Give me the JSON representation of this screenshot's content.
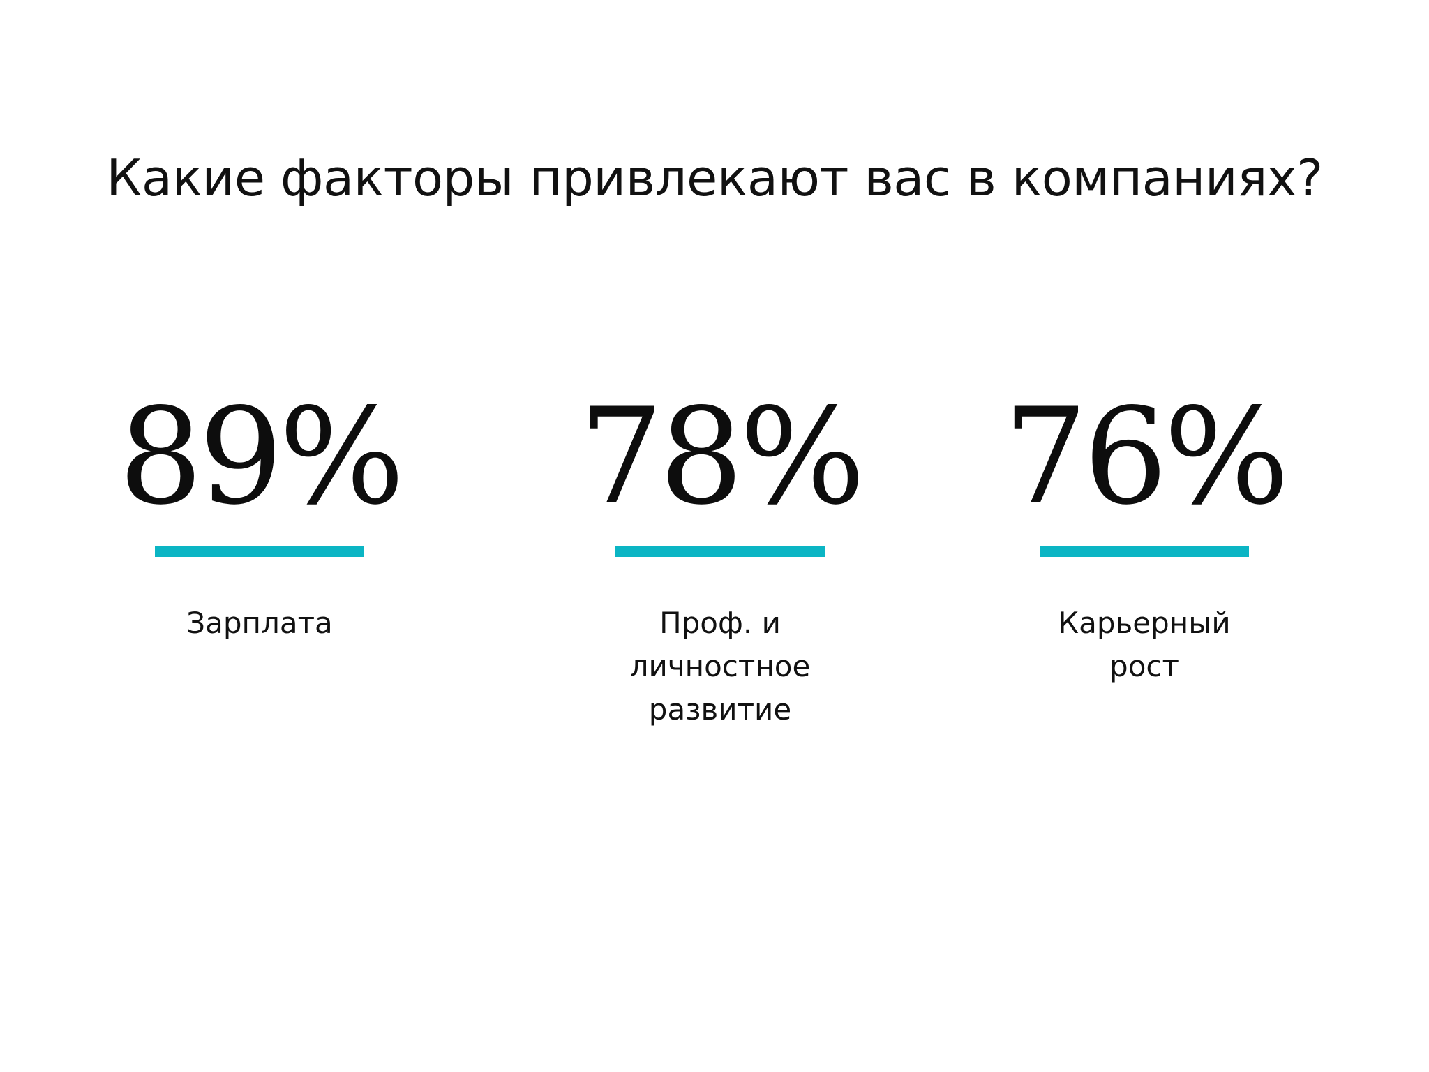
{
  "title": "Какие факторы привлекают вас в компаниях?",
  "accent_color": "#0bb5c4",
  "stats": [
    {
      "value": "89%",
      "label": "Зарплата"
    },
    {
      "value": "78%",
      "label": "Проф. и\nличностное\nразвитие"
    },
    {
      "value": "76%",
      "label": "Карьерный\nрост"
    }
  ]
}
